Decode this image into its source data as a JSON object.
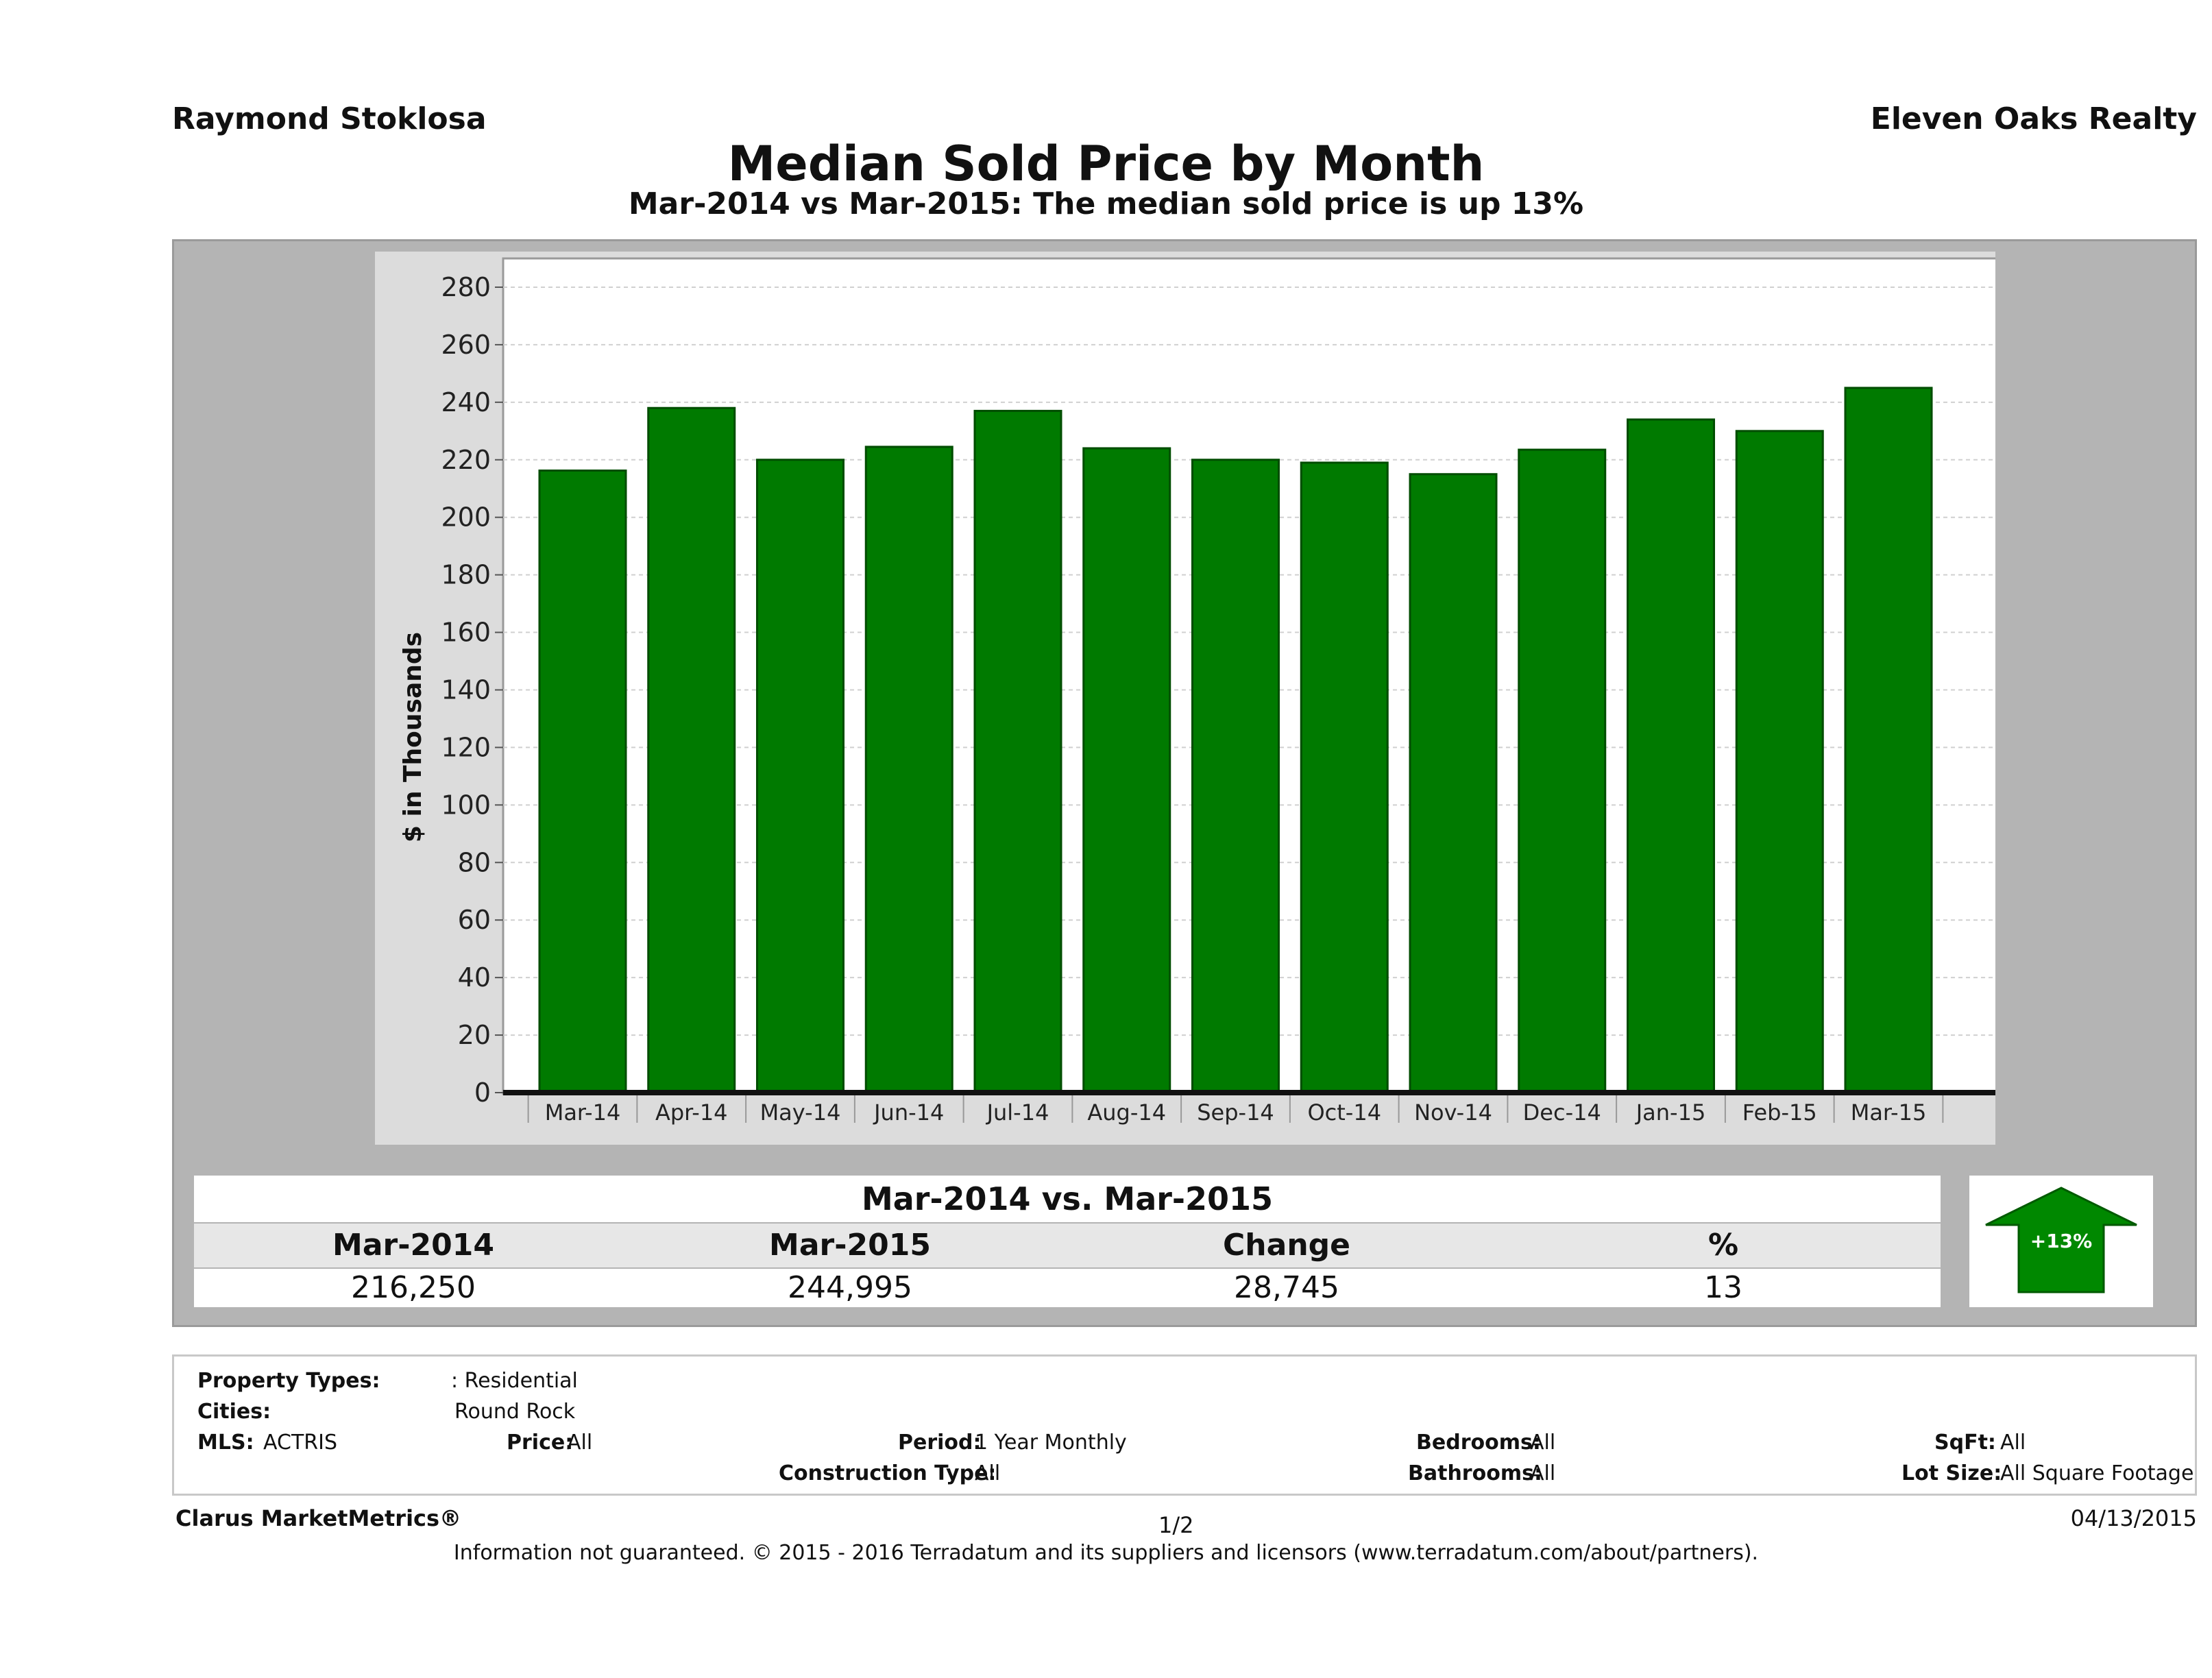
{
  "header": {
    "agent_name": "Raymond Stoklosa",
    "company": "Eleven Oaks Realty",
    "title": "Median Sold Price by Month",
    "subtitle": "Mar-2014 vs Mar-2015: The median sold price is up 13%"
  },
  "colors": {
    "bar_fill": "#007a00",
    "bar_stroke": "#004d00",
    "panel_bg": "#b4b4b4",
    "plot_bg": "#ffffff",
    "arrow_fill": "#008800"
  },
  "chart_data": {
    "type": "bar",
    "categories": [
      "Mar-14",
      "Apr-14",
      "May-14",
      "Jun-14",
      "Jul-14",
      "Aug-14",
      "Sep-14",
      "Oct-14",
      "Nov-14",
      "Dec-14",
      "Jan-15",
      "Feb-15",
      "Mar-15"
    ],
    "values": [
      216.25,
      238,
      220,
      224.5,
      237,
      224,
      220,
      219,
      215,
      223.5,
      234,
      230,
      244.995
    ],
    "ylabel": "$ in Thousands",
    "ylim": [
      0,
      290
    ],
    "yticks": [
      0,
      20,
      40,
      60,
      80,
      100,
      120,
      140,
      160,
      180,
      200,
      220,
      240,
      260,
      280
    ],
    "grid": true
  },
  "comparison": {
    "title": "Mar-2014 vs. Mar-2015",
    "headers": [
      "Mar-2014",
      "Mar-2015",
      "Change",
      "%"
    ],
    "values": [
      "216,250",
      "244,995",
      "28,745",
      "13"
    ],
    "badge": "+13%",
    "direction": "up"
  },
  "filters": {
    "property_types_label": "Property Types:",
    "property_types_value": ": Residential",
    "cities_label": "Cities:",
    "cities_value": "Round Rock",
    "mls_label": "MLS:",
    "mls_value": "ACTRIS",
    "price_label": "Price:",
    "price_value": "All",
    "period_label": "Period:",
    "period_value": "1 Year Monthly",
    "construction_label": "Construction Type:",
    "construction_value": "All",
    "bedrooms_label": "Bedrooms:",
    "bedrooms_value": "All",
    "bathrooms_label": "Bathrooms:",
    "bathrooms_value": "All",
    "sqft_label": "SqFt:",
    "sqft_value": "All",
    "lot_label": "Lot Size:",
    "lot_value": "All Square Footage"
  },
  "footer": {
    "brand": "Clarus MarketMetrics®",
    "page": "1/2",
    "date": "04/13/2015",
    "disclaimer": "Information not guaranteed. © 2015 - 2016 Terradatum and its suppliers and licensors (www.terradatum.com/about/partners)."
  }
}
